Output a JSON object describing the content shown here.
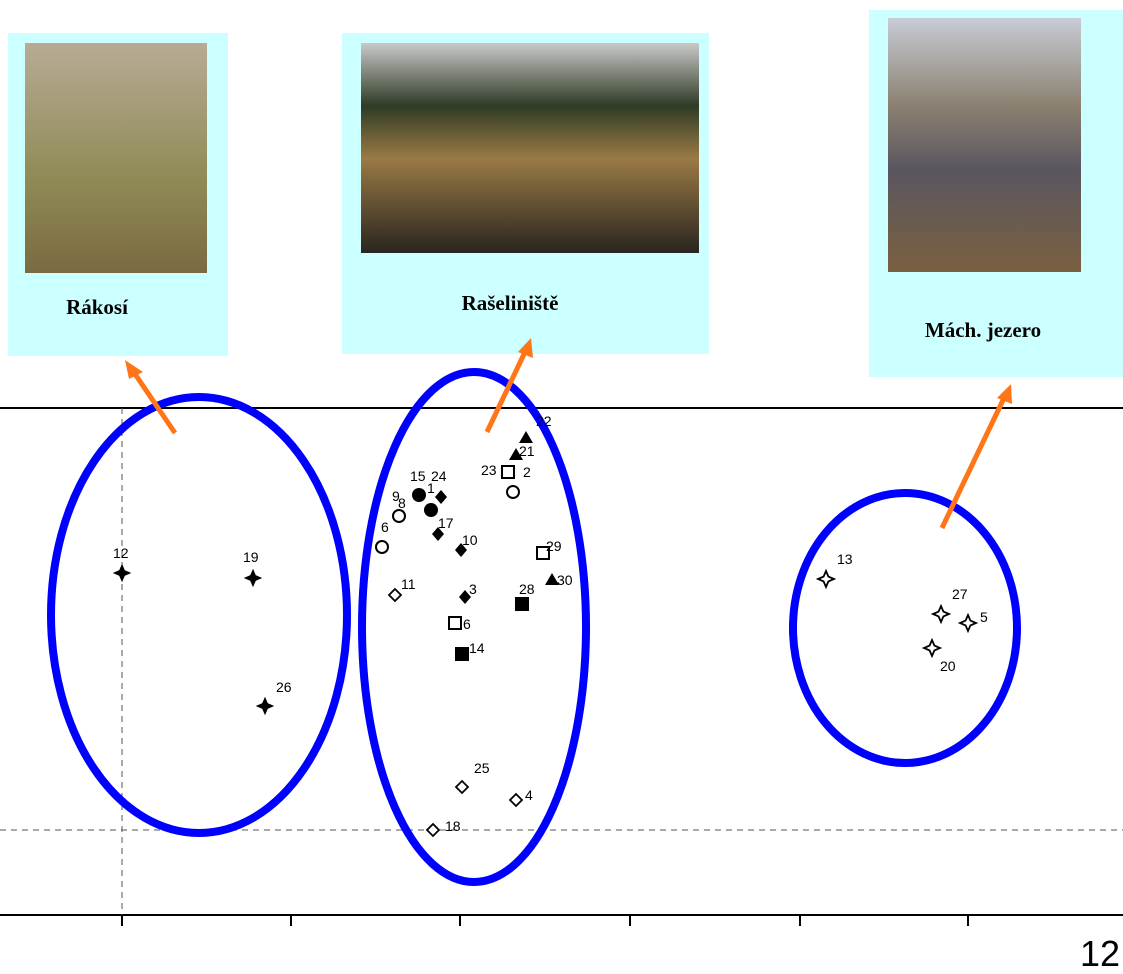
{
  "photos": [
    {
      "label": "Rákosí"
    },
    {
      "label": "Rašeliniště"
    },
    {
      "label": "Mách.  jezero"
    }
  ],
  "points": [
    {
      "label": "12"
    },
    {
      "label": "19"
    },
    {
      "label": "26"
    },
    {
      "label": "22"
    },
    {
      "label": "21"
    },
    {
      "label": "23"
    },
    {
      "label": "2"
    },
    {
      "label": "15"
    },
    {
      "label": "24"
    },
    {
      "label": "1"
    },
    {
      "label": "9"
    },
    {
      "label": "8"
    },
    {
      "label": "17"
    },
    {
      "label": "6"
    },
    {
      "label": "10"
    },
    {
      "label": "29"
    },
    {
      "label": "11"
    },
    {
      "label": "3"
    },
    {
      "label": "28"
    },
    {
      "label": "30"
    },
    {
      "label": "6"
    },
    {
      "label": "14"
    },
    {
      "label": "25"
    },
    {
      "label": "4"
    },
    {
      "label": "18"
    },
    {
      "label": "13"
    },
    {
      "label": "27"
    },
    {
      "label": "5"
    },
    {
      "label": "20"
    }
  ],
  "page_number": "12"
}
